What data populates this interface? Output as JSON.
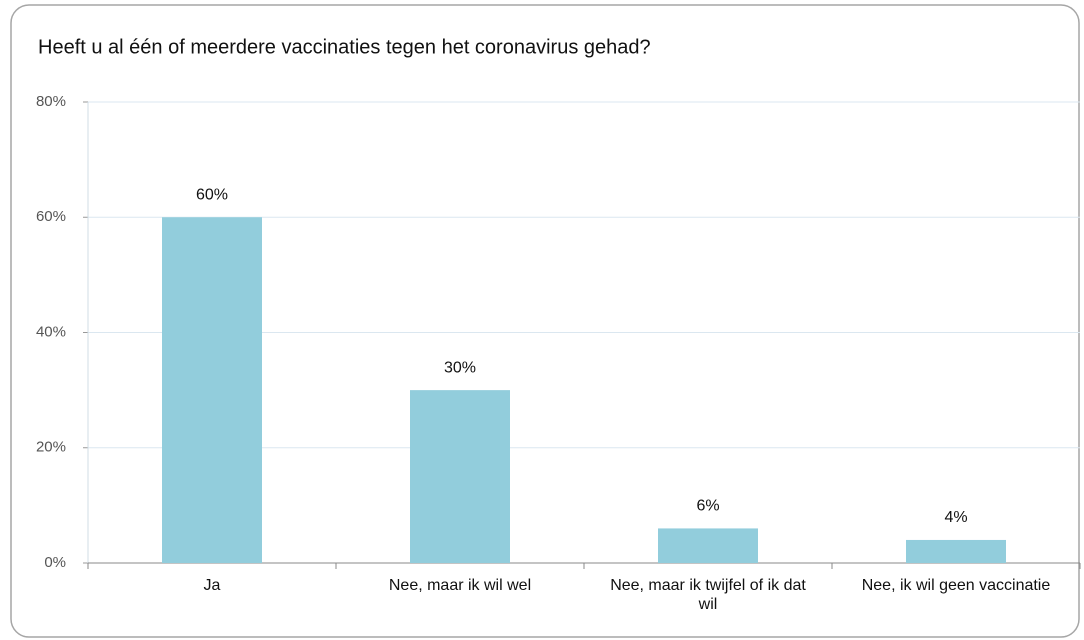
{
  "chart_data": {
    "type": "bar",
    "title": "Heeft u al één of meerdere vaccinaties tegen het coronavirus gehad?",
    "categories": [
      "Ja",
      "Nee, maar ik wil wel",
      "Nee, maar ik twijfel of ik dat wil",
      "Nee, ik wil geen vaccinatie"
    ],
    "values": [
      60,
      30,
      6,
      4
    ],
    "value_labels": [
      "60%",
      "30%",
      "6%",
      "4%"
    ],
    "color": "#92cddc",
    "ylim": [
      0,
      80
    ],
    "yticks": [
      {
        "value": 0,
        "label": "0%"
      },
      {
        "value": 20,
        "label": "20%"
      },
      {
        "value": 40,
        "label": "40%"
      },
      {
        "value": 60,
        "label": "60%"
      },
      {
        "value": 80,
        "label": "80%"
      }
    ],
    "grid": true
  }
}
